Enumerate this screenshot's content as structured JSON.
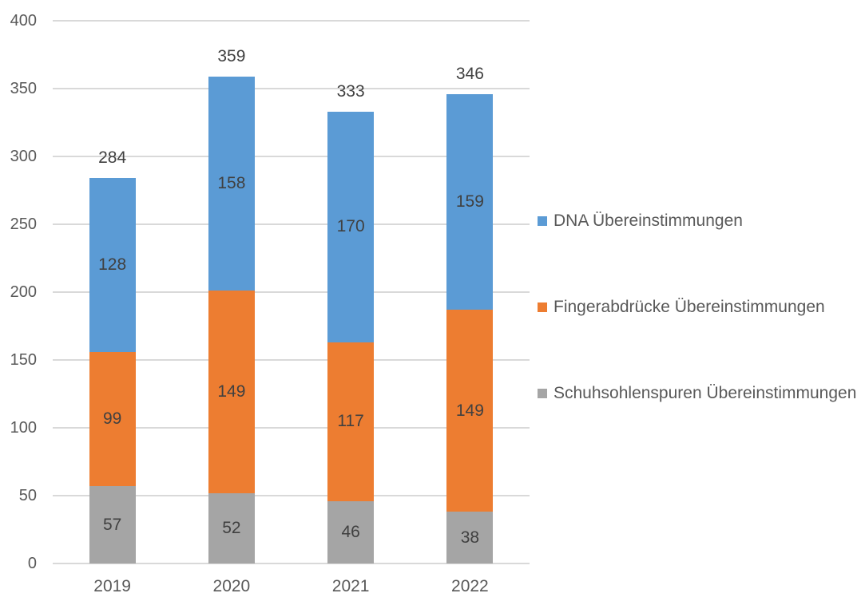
{
  "chart_data": {
    "type": "bar",
    "stacked": true,
    "title": "",
    "xlabel": "",
    "ylabel": "",
    "categories": [
      "2019",
      "2020",
      "2021",
      "2022"
    ],
    "series": [
      {
        "name": "Schuhsohlenspuren Übereinstimmungen",
        "color": "#a5a5a5",
        "values": [
          57,
          52,
          46,
          38
        ]
      },
      {
        "name": "Fingerabdrücke Übereinstimmungen",
        "color": "#ed7d31",
        "values": [
          99,
          149,
          117,
          149
        ]
      },
      {
        "name": "DNA Übereinstimmungen",
        "color": "#5b9bd5",
        "values": [
          128,
          158,
          170,
          159
        ]
      }
    ],
    "totals": [
      284,
      359,
      333,
      346
    ],
    "ylim": [
      0,
      400
    ],
    "ytick_step": 50,
    "yticks": [
      0,
      50,
      100,
      150,
      200,
      250,
      300,
      350,
      400
    ],
    "grid": true,
    "legend_position": "right",
    "legend_order_series_indexes": [
      2,
      1,
      0
    ]
  },
  "style": {
    "grid_color": "#d9d9d9",
    "tick_label_color": "#595959",
    "data_label_color": "#404040",
    "background": "#ffffff"
  }
}
